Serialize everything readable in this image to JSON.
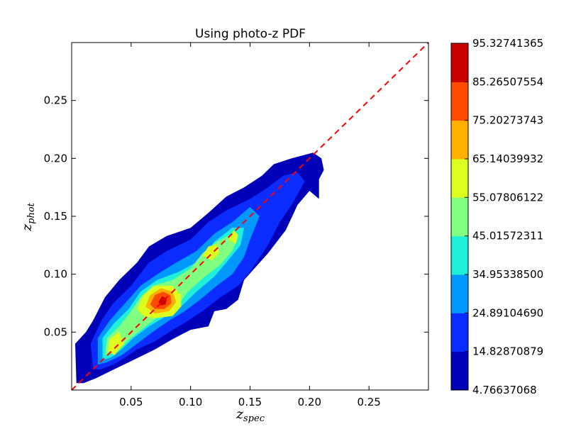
{
  "chart_data": {
    "type": "contour",
    "title": "Using photo-z PDF",
    "xlabel": {
      "base": "z",
      "sub": "spec"
    },
    "ylabel": {
      "base": "z",
      "sub": "phot"
    },
    "xlim": [
      0.0,
      0.3
    ],
    "ylim": [
      0.0,
      0.3
    ],
    "x_ticks": [
      0.05,
      0.1,
      0.15,
      0.2,
      0.25
    ],
    "x_tick_labels": [
      "0.05",
      "0.10",
      "0.15",
      "0.20",
      "0.25"
    ],
    "y_ticks": [
      0.05,
      0.1,
      0.15,
      0.2,
      0.25
    ],
    "y_tick_labels": [
      "0.05",
      "0.10",
      "0.15",
      "0.20",
      "0.25"
    ],
    "reference_line": {
      "from": [
        0.0,
        0.0
      ],
      "to": [
        0.3,
        0.3
      ],
      "style": "dashed",
      "color": "#ff0000"
    },
    "colorbar": {
      "levels": [
        4.76637068,
        14.82870879,
        24.8910469,
        34.953385,
        45.01572311,
        55.07806122,
        65.14039932,
        75.20273743,
        85.26507554,
        95.32741365
      ],
      "labels": [
        "4.76637068",
        "14.82870879",
        "24.89104690",
        "34.95338500",
        "45.01572311",
        "55.07806122",
        "65.14039932",
        "75.20273743",
        "85.26507554",
        "95.32741365"
      ],
      "colors": [
        "#0000b8",
        "#0a2cff",
        "#0098ff",
        "#20f0d8",
        "#80ff80",
        "#dcff20",
        "#ffb000",
        "#ff4a00",
        "#c80000"
      ]
    },
    "contour_bands": [
      {
        "level_index": 0,
        "points": [
          [
            0.004,
            0.006
          ],
          [
            0.003,
            0.04
          ],
          [
            0.012,
            0.05
          ],
          [
            0.018,
            0.06
          ],
          [
            0.028,
            0.08
          ],
          [
            0.04,
            0.095
          ],
          [
            0.055,
            0.11
          ],
          [
            0.065,
            0.124
          ],
          [
            0.08,
            0.133
          ],
          [
            0.1,
            0.14
          ],
          [
            0.115,
            0.153
          ],
          [
            0.13,
            0.167
          ],
          [
            0.145,
            0.175
          ],
          [
            0.16,
            0.185
          ],
          [
            0.17,
            0.195
          ],
          [
            0.185,
            0.2
          ],
          [
            0.203,
            0.205
          ],
          [
            0.21,
            0.2
          ],
          [
            0.212,
            0.19
          ],
          [
            0.208,
            0.182
          ],
          [
            0.208,
            0.165
          ],
          [
            0.2,
            0.172
          ],
          [
            0.19,
            0.16
          ],
          [
            0.18,
            0.138
          ],
          [
            0.165,
            0.118
          ],
          [
            0.145,
            0.095
          ],
          [
            0.14,
            0.078
          ],
          [
            0.13,
            0.07
          ],
          [
            0.12,
            0.068
          ],
          [
            0.115,
            0.055
          ],
          [
            0.1,
            0.052
          ],
          [
            0.085,
            0.044
          ],
          [
            0.07,
            0.035
          ],
          [
            0.06,
            0.03
          ],
          [
            0.05,
            0.025
          ],
          [
            0.04,
            0.02
          ],
          [
            0.03,
            0.015
          ],
          [
            0.02,
            0.01
          ],
          [
            0.01,
            0.006
          ]
        ]
      },
      {
        "level_index": 1,
        "points": [
          [
            0.018,
            0.018
          ],
          [
            0.016,
            0.04
          ],
          [
            0.025,
            0.06
          ],
          [
            0.035,
            0.075
          ],
          [
            0.05,
            0.09
          ],
          [
            0.065,
            0.11
          ],
          [
            0.08,
            0.12
          ],
          [
            0.1,
            0.13
          ],
          [
            0.115,
            0.145
          ],
          [
            0.13,
            0.155
          ],
          [
            0.15,
            0.165
          ],
          [
            0.165,
            0.175
          ],
          [
            0.178,
            0.185
          ],
          [
            0.19,
            0.188
          ],
          [
            0.196,
            0.18
          ],
          [
            0.185,
            0.16
          ],
          [
            0.175,
            0.145
          ],
          [
            0.165,
            0.125
          ],
          [
            0.15,
            0.102
          ],
          [
            0.14,
            0.09
          ],
          [
            0.125,
            0.08
          ],
          [
            0.11,
            0.068
          ],
          [
            0.095,
            0.058
          ],
          [
            0.085,
            0.052
          ],
          [
            0.07,
            0.042
          ],
          [
            0.055,
            0.035
          ],
          [
            0.045,
            0.028
          ],
          [
            0.035,
            0.022
          ],
          [
            0.025,
            0.018
          ]
        ]
      },
      {
        "level_index": 2,
        "points": [
          [
            0.022,
            0.022
          ],
          [
            0.022,
            0.045
          ],
          [
            0.032,
            0.06
          ],
          [
            0.045,
            0.075
          ],
          [
            0.058,
            0.09
          ],
          [
            0.072,
            0.1
          ],
          [
            0.088,
            0.11
          ],
          [
            0.105,
            0.12
          ],
          [
            0.12,
            0.135
          ],
          [
            0.135,
            0.145
          ],
          [
            0.15,
            0.158
          ],
          [
            0.158,
            0.15
          ],
          [
            0.15,
            0.13
          ],
          [
            0.145,
            0.115
          ],
          [
            0.135,
            0.1
          ],
          [
            0.122,
            0.09
          ],
          [
            0.108,
            0.078
          ],
          [
            0.095,
            0.068
          ],
          [
            0.082,
            0.06
          ],
          [
            0.068,
            0.05
          ],
          [
            0.055,
            0.04
          ],
          [
            0.042,
            0.03
          ],
          [
            0.03,
            0.024
          ]
        ]
      },
      {
        "level_index": 3,
        "points": [
          [
            0.026,
            0.026
          ],
          [
            0.026,
            0.045
          ],
          [
            0.036,
            0.058
          ],
          [
            0.048,
            0.07
          ],
          [
            0.058,
            0.085
          ],
          [
            0.072,
            0.095
          ],
          [
            0.09,
            0.102
          ],
          [
            0.108,
            0.112
          ],
          [
            0.12,
            0.128
          ],
          [
            0.135,
            0.14
          ],
          [
            0.145,
            0.14
          ],
          [
            0.142,
            0.125
          ],
          [
            0.13,
            0.11
          ],
          [
            0.12,
            0.098
          ],
          [
            0.105,
            0.085
          ],
          [
            0.092,
            0.072
          ],
          [
            0.078,
            0.063
          ],
          [
            0.065,
            0.055
          ],
          [
            0.052,
            0.045
          ],
          [
            0.042,
            0.035
          ],
          [
            0.033,
            0.028
          ]
        ]
      },
      {
        "level_index": 4,
        "points": [
          [
            0.028,
            0.03
          ],
          [
            0.03,
            0.045
          ],
          [
            0.04,
            0.055
          ],
          [
            0.05,
            0.068
          ],
          [
            0.058,
            0.08
          ],
          [
            0.068,
            0.09
          ],
          [
            0.085,
            0.095
          ],
          [
            0.1,
            0.105
          ],
          [
            0.11,
            0.118
          ],
          [
            0.122,
            0.128
          ],
          [
            0.135,
            0.135
          ],
          [
            0.14,
            0.132
          ],
          [
            0.135,
            0.12
          ],
          [
            0.125,
            0.108
          ],
          [
            0.112,
            0.098
          ],
          [
            0.098,
            0.085
          ],
          [
            0.088,
            0.072
          ],
          [
            0.075,
            0.065
          ],
          [
            0.062,
            0.055
          ],
          [
            0.05,
            0.045
          ],
          [
            0.04,
            0.035
          ]
        ]
      },
      {
        "level_index": 5,
        "points": [
          [
            0.03,
            0.034
          ],
          [
            0.032,
            0.044
          ],
          [
            0.04,
            0.05
          ],
          [
            0.044,
            0.04
          ],
          [
            0.036,
            0.03
          ]
        ]
      },
      {
        "level_index": 5,
        "points": [
          [
            0.055,
            0.07
          ],
          [
            0.06,
            0.082
          ],
          [
            0.07,
            0.09
          ],
          [
            0.085,
            0.09
          ],
          [
            0.092,
            0.082
          ],
          [
            0.092,
            0.072
          ],
          [
            0.085,
            0.064
          ],
          [
            0.07,
            0.062
          ],
          [
            0.06,
            0.064
          ]
        ]
      },
      {
        "level_index": 5,
        "points": [
          [
            0.11,
            0.116
          ],
          [
            0.115,
            0.124
          ],
          [
            0.122,
            0.126
          ],
          [
            0.124,
            0.118
          ],
          [
            0.118,
            0.112
          ]
        ]
      },
      {
        "level_index": 5,
        "points": [
          [
            0.132,
            0.13
          ],
          [
            0.136,
            0.138
          ],
          [
            0.14,
            0.134
          ],
          [
            0.138,
            0.126
          ]
        ]
      },
      {
        "level_index": 6,
        "points": [
          [
            0.062,
            0.072
          ],
          [
            0.066,
            0.082
          ],
          [
            0.075,
            0.088
          ],
          [
            0.085,
            0.085
          ],
          [
            0.088,
            0.076
          ],
          [
            0.082,
            0.068
          ],
          [
            0.07,
            0.066
          ]
        ]
      },
      {
        "level_index": 7,
        "points": [
          [
            0.066,
            0.074
          ],
          [
            0.07,
            0.082
          ],
          [
            0.077,
            0.085
          ],
          [
            0.083,
            0.082
          ],
          [
            0.084,
            0.075
          ],
          [
            0.078,
            0.07
          ],
          [
            0.07,
            0.07
          ]
        ]
      },
      {
        "level_index": 8,
        "points": [
          [
            0.073,
            0.076
          ],
          [
            0.076,
            0.081
          ],
          [
            0.08,
            0.079
          ],
          [
            0.079,
            0.074
          ],
          [
            0.075,
            0.073
          ]
        ]
      }
    ]
  }
}
